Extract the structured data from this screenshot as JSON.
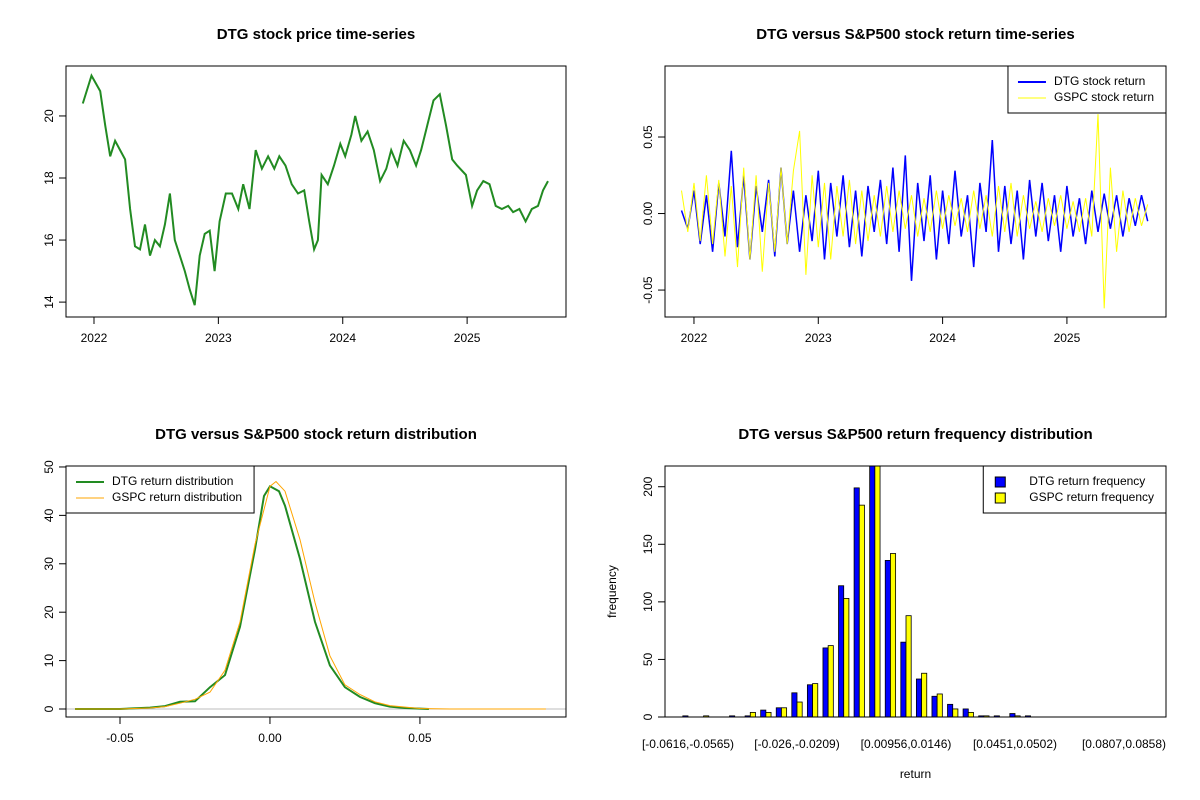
{
  "chart_data": [
    {
      "type": "line",
      "title": "DTG stock price time-series",
      "x": [
        2021.91,
        2021.98,
        2022.05,
        2022.09,
        2022.13,
        2022.17,
        2022.21,
        2022.25,
        2022.29,
        2022.33,
        2022.37,
        2022.41,
        2022.45,
        2022.49,
        2022.53,
        2022.57,
        2022.61,
        2022.65,
        2022.69,
        2022.73,
        2022.77,
        2022.81,
        2022.85,
        2022.89,
        2022.93,
        2022.97,
        2023.01,
        2023.06,
        2023.11,
        2023.16,
        2023.2,
        2023.25,
        2023.3,
        2023.35,
        2023.4,
        2023.45,
        2023.49,
        2023.54,
        2023.59,
        2023.64,
        2023.69,
        2023.73,
        2023.77,
        2023.8,
        2023.83,
        2023.88,
        2023.93,
        2023.98,
        2024.02,
        2024.07,
        2024.1,
        2024.15,
        2024.2,
        2024.25,
        2024.3,
        2024.35,
        2024.39,
        2024.44,
        2024.49,
        2024.54,
        2024.59,
        2024.63,
        2024.68,
        2024.73,
        2024.78,
        2024.83,
        2024.88,
        2024.92,
        2024.99,
        2025.04,
        2025.08,
        2025.13,
        2025.18,
        2025.23,
        2025.28,
        2025.33,
        2025.37,
        2025.42,
        2025.47,
        2025.52,
        2025.57,
        2025.61,
        2025.65
      ],
      "series": [
        {
          "name": "DTG",
          "color": "#228b22",
          "values": [
            20.4,
            21.3,
            20.8,
            19.7,
            18.7,
            19.2,
            18.9,
            18.6,
            17.0,
            15.8,
            15.7,
            16.5,
            15.5,
            16.0,
            15.8,
            16.5,
            17.5,
            16.0,
            15.5,
            15.0,
            14.4,
            13.9,
            15.5,
            16.2,
            16.3,
            15.0,
            16.6,
            17.5,
            17.5,
            17.0,
            17.8,
            17.0,
            18.9,
            18.3,
            18.7,
            18.3,
            18.7,
            18.4,
            17.8,
            17.5,
            17.6,
            16.6,
            15.7,
            16.0,
            18.1,
            17.8,
            18.4,
            19.1,
            18.7,
            19.4,
            20.0,
            19.2,
            19.5,
            18.9,
            17.9,
            18.3,
            18.9,
            18.4,
            19.2,
            18.9,
            18.4,
            18.9,
            19.7,
            20.5,
            20.7,
            19.7,
            18.6,
            18.4,
            18.1,
            17.1,
            17.6,
            17.9,
            17.8,
            17.1,
            17.0,
            17.1,
            16.9,
            17.0,
            16.6,
            17.0,
            17.1,
            17.6,
            17.9
          ]
        }
      ],
      "xlim": [
        2021.775,
        2025.795
      ],
      "xticks": [
        2022,
        2023,
        2024,
        2025
      ],
      "ylim": [
        13.52,
        21.61
      ],
      "yticks": [
        14,
        16,
        18,
        20
      ]
    },
    {
      "type": "line",
      "title": "DTG versus S&P500 stock return time-series",
      "x": [
        2021.9,
        2021.95,
        2022,
        2022.05,
        2022.1,
        2022.15,
        2022.2,
        2022.25,
        2022.3,
        2022.35,
        2022.4,
        2022.45,
        2022.5,
        2022.55,
        2022.6,
        2022.65,
        2022.7,
        2022.75,
        2022.8,
        2022.85,
        2022.9,
        2022.95,
        2023,
        2023.05,
        2023.1,
        2023.15,
        2023.2,
        2023.25,
        2023.3,
        2023.35,
        2023.4,
        2023.45,
        2023.5,
        2023.55,
        2023.6,
        2023.65,
        2023.7,
        2023.75,
        2023.8,
        2023.85,
        2023.9,
        2023.95,
        2024,
        2024.05,
        2024.1,
        2024.15,
        2024.2,
        2024.25,
        2024.3,
        2024.35,
        2024.4,
        2024.45,
        2024.5,
        2024.55,
        2024.6,
        2024.65,
        2024.7,
        2024.75,
        2024.8,
        2024.85,
        2024.9,
        2024.95,
        2025,
        2025.05,
        2025.1,
        2025.15,
        2025.2,
        2025.25,
        2025.3,
        2025.35,
        2025.4,
        2025.45,
        2025.5,
        2025.55,
        2025.6,
        2025.65
      ],
      "series": [
        {
          "name": "DTG stock return",
          "color": "#0000ff",
          "values": [
            0.002,
            -0.01,
            0.015,
            -0.02,
            0.012,
            -0.025,
            0.02,
            -0.015,
            0.041,
            -0.022,
            0.025,
            -0.03,
            0.018,
            -0.012,
            0.022,
            -0.028,
            0.03,
            -0.02,
            0.015,
            -0.025,
            0.012,
            -0.018,
            0.028,
            -0.03,
            0.02,
            -0.015,
            0.025,
            -0.022,
            0.015,
            -0.028,
            0.018,
            -0.012,
            0.022,
            -0.02,
            0.03,
            -0.025,
            0.038,
            -0.044,
            0.02,
            -0.018,
            0.025,
            -0.03,
            0.015,
            -0.02,
            0.028,
            -0.015,
            0.012,
            -0.035,
            0.02,
            -0.012,
            0.048,
            -0.025,
            0.018,
            -0.02,
            0.015,
            -0.03,
            0.022,
            -0.015,
            0.02,
            -0.018,
            0.012,
            -0.025,
            0.018,
            -0.015,
            0.01,
            -0.02,
            0.015,
            -0.012,
            0.013,
            -0.01,
            0.012,
            -0.015,
            0.01,
            -0.008,
            0.012,
            -0.005
          ]
        },
        {
          "name": "GSPC stock return",
          "color": "#ffff00",
          "values": [
            0.015,
            -0.012,
            0.02,
            -0.018,
            0.025,
            -0.02,
            0.022,
            -0.028,
            0.018,
            -0.035,
            0.03,
            -0.03,
            0.025,
            -0.038,
            0.02,
            -0.025,
            0.03,
            -0.02,
            0.028,
            0.054,
            -0.04,
            0.025,
            -0.022,
            0.02,
            -0.03,
            0.018,
            -0.015,
            0.022,
            -0.02,
            0.015,
            -0.018,
            0.012,
            -0.015,
            0.018,
            -0.012,
            0.015,
            -0.01,
            0.012,
            -0.015,
            0.01,
            -0.012,
            0.015,
            -0.01,
            0.012,
            -0.008,
            0.01,
            -0.012,
            0.015,
            -0.01,
            0.012,
            -0.015,
            0.018,
            -0.012,
            0.02,
            -0.015,
            0.012,
            -0.01,
            0.008,
            -0.012,
            0.01,
            -0.008,
            0.012,
            -0.01,
            0.008,
            -0.012,
            0.01,
            -0.015,
            0.065,
            -0.062,
            0.03,
            -0.025,
            0.015,
            -0.012,
            0.01,
            -0.008,
            0.006
          ]
        }
      ],
      "xlim": [
        2021.767,
        2025.797
      ],
      "xticks": [
        2022,
        2023,
        2024,
        2025
      ],
      "ylim": [
        -0.0676,
        0.0964
      ],
      "yticks": [
        -0.05,
        {
          "value": 0,
          "label": "0.00"
        },
        0.05
      ],
      "legend": "topright"
    },
    {
      "type": "line",
      "title": "DTG versus S&P500 stock return distribution",
      "series": [
        {
          "name": "DTG return distribution",
          "color": "#228b22",
          "x": [
            -0.065,
            -0.05,
            -0.04,
            -0.035,
            -0.03,
            -0.025,
            -0.02,
            -0.015,
            -0.01,
            -0.005,
            -0.002,
            0,
            0.003,
            0.005,
            0.01,
            0.015,
            0.02,
            0.025,
            0.03,
            0.035,
            0.04,
            0.045,
            0.053
          ],
          "values": [
            0,
            0,
            0.3,
            0.6,
            1.5,
            1.6,
            4.5,
            7,
            17,
            33,
            44,
            46,
            45,
            42,
            31,
            18,
            9,
            4.5,
            2.5,
            1.2,
            0.5,
            0.2,
            0
          ]
        },
        {
          "name": "GSPC return distribution",
          "color": "#ffa500",
          "x": [
            -0.065,
            -0.05,
            -0.04,
            -0.035,
            -0.03,
            -0.025,
            -0.02,
            -0.015,
            -0.01,
            -0.005,
            0,
            0.002,
            0.005,
            0.01,
            0.015,
            0.02,
            0.025,
            0.03,
            0.035,
            0.04,
            0.05,
            0.06,
            0.08,
            0.092
          ],
          "values": [
            0,
            0,
            0.2,
            0.5,
            1.2,
            2,
            3.5,
            8,
            18,
            34,
            46,
            47,
            45,
            35,
            22,
            11,
            5,
            3,
            1.5,
            0.7,
            0.1,
            0,
            0,
            0
          ]
        }
      ],
      "xlim": [
        -0.068,
        0.0987
      ],
      "xticks": [
        -0.05,
        {
          "value": 0,
          "label": "0.00"
        },
        0.05
      ],
      "ylim": [
        -1.65,
        50.2
      ],
      "yticks": [
        0,
        10,
        20,
        30,
        40,
        50
      ],
      "legend": "topleft"
    },
    {
      "type": "bar",
      "title": "DTG versus S&P500 return frequency distribution",
      "x_label": "return",
      "y_label": "frequency",
      "categories": [
        "[-0.0616,-0.0565)",
        null,
        null,
        null,
        null,
        null,
        null,
        "[-0.026,-0.0209)",
        null,
        null,
        null,
        null,
        null,
        null,
        "[0.00956,0.0146)",
        null,
        null,
        null,
        null,
        null,
        null,
        "[0.0451,0.0502)",
        null,
        null,
        null,
        null,
        null,
        null,
        "[0.0807,0.0858)"
      ],
      "series": [
        {
          "name": "DTG return frequency",
          "color": "#0000ff",
          "values": [
            1,
            0,
            0,
            1,
            1,
            6,
            8,
            21,
            28,
            60,
            114,
            199,
            218,
            136,
            65,
            33,
            18,
            11,
            7,
            1,
            1,
            3,
            1,
            0,
            0,
            0,
            0,
            0,
            0
          ]
        },
        {
          "name": "GSPC return frequency",
          "color": "#ffff00",
          "values": [
            0,
            1,
            0,
            0,
            4,
            4,
            8,
            13,
            29,
            62,
            103,
            184,
            218,
            142,
            88,
            38,
            20,
            7,
            4,
            1,
            0,
            1,
            0,
            0,
            0,
            0,
            0,
            0,
            0
          ]
        }
      ],
      "ylim": [
        0,
        218
      ],
      "yticks": [
        0,
        50,
        100,
        150,
        200
      ],
      "legend": "topright"
    }
  ]
}
